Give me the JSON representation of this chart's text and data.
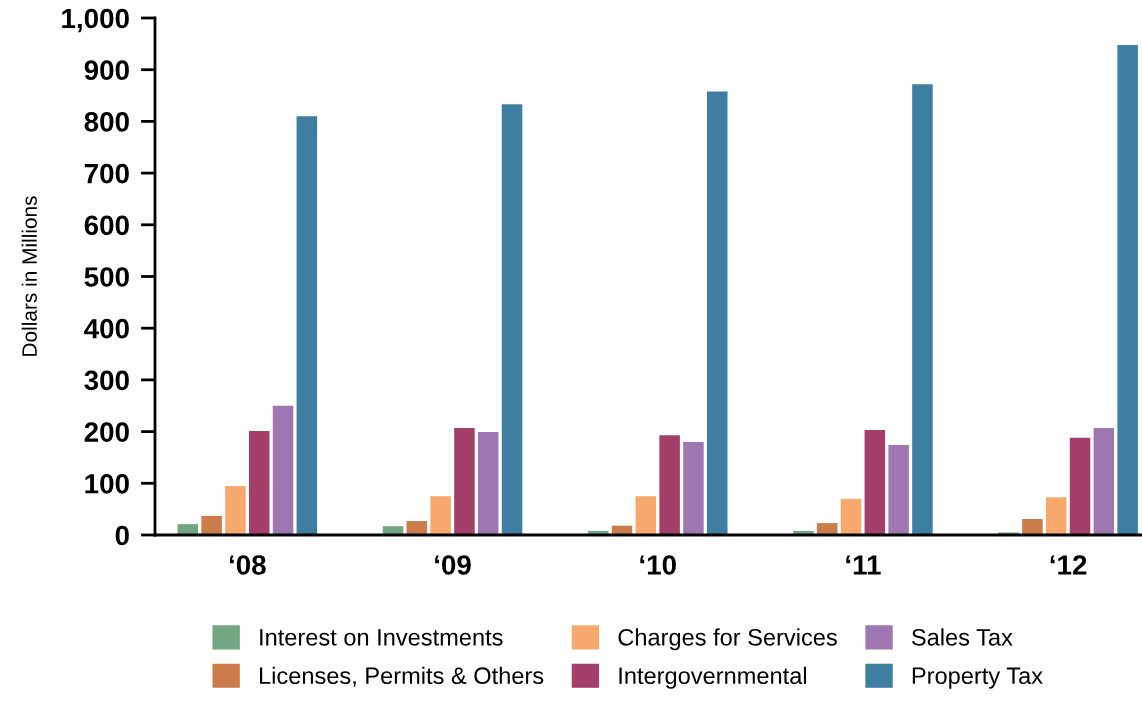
{
  "chart_data": {
    "type": "bar",
    "ylabel": "Dollars in Millions",
    "categories": [
      "‘08",
      "‘09",
      "‘10",
      "‘11",
      "‘12"
    ],
    "series": [
      {
        "name": "Interest on Investments",
        "color": "#72a683",
        "values": [
          21,
          17,
          8,
          8,
          5
        ]
      },
      {
        "name": "Licenses, Permits & Others",
        "color": "#cc7b4a",
        "values": [
          37,
          27,
          18,
          23,
          31
        ]
      },
      {
        "name": "Charges for Services",
        "color": "#f8a96e",
        "values": [
          95,
          75,
          75,
          70,
          73
        ]
      },
      {
        "name": "Intergovernmental",
        "color": "#a43f69",
        "values": [
          201,
          207,
          193,
          203,
          188
        ]
      },
      {
        "name": "Sales Tax",
        "color": "#9f77b3",
        "values": [
          250,
          199,
          180,
          174,
          207
        ]
      },
      {
        "name": "Property Tax",
        "color": "#3e7ea1",
        "values": [
          810,
          833,
          858,
          872,
          948
        ]
      }
    ],
    "ylim": [
      0,
      1000
    ],
    "yticks": [
      0,
      100,
      200,
      300,
      400,
      500,
      600,
      700,
      800,
      900,
      {
        "value": 1000,
        "label": "1,000"
      }
    ],
    "grid": false,
    "legend": "bottom"
  }
}
